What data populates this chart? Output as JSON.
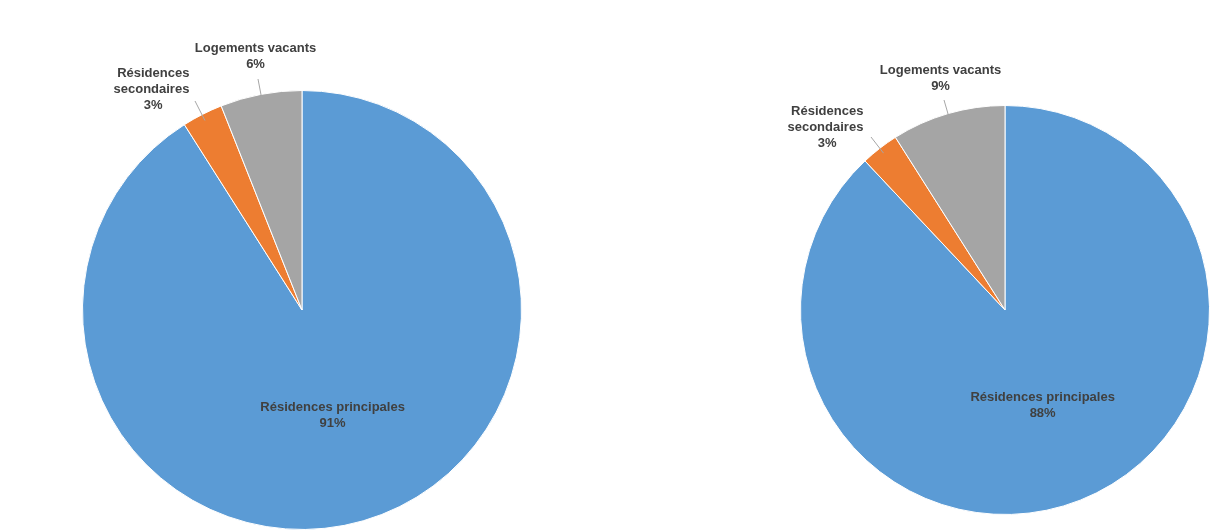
{
  "chart_data": [
    {
      "type": "pie",
      "categories": [
        "Résidences principales",
        "Résidences secondaires",
        "Logements vacants"
      ],
      "values": [
        91,
        3,
        6
      ],
      "colors": [
        "#5b9bd5",
        "#ed7d31",
        "#a5a5a5"
      ],
      "value_labels": [
        "91%",
        "3%",
        "6%"
      ]
    },
    {
      "type": "pie",
      "categories": [
        "Résidences principales",
        "Résidences secondaires",
        "Logements vacants"
      ],
      "values": [
        88,
        3,
        9
      ],
      "colors": [
        "#5b9bd5",
        "#ed7d31",
        "#a5a5a5"
      ],
      "value_labels": [
        "88%",
        "3%",
        "9%"
      ]
    }
  ]
}
